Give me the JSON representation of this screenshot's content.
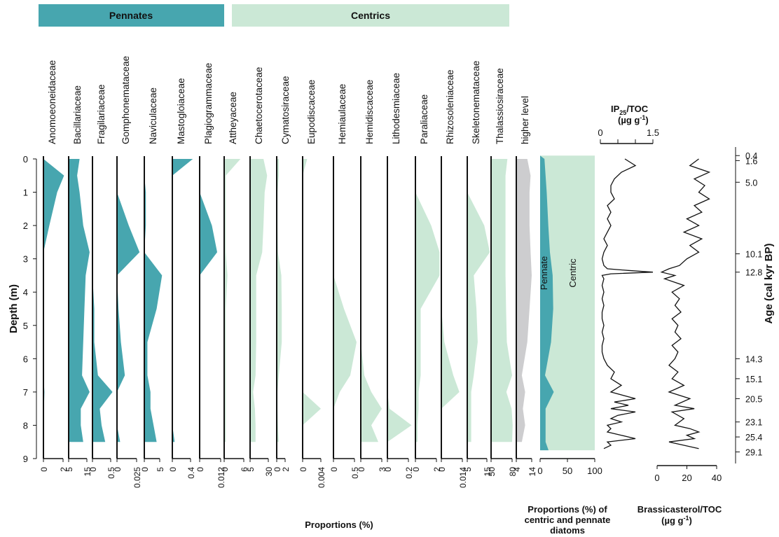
{
  "colors": {
    "pennate": "#47A6AF",
    "centric": "#CBE8D6",
    "higher": "#CDCDCF",
    "axis": "#111111"
  },
  "chart_data": {
    "type": "area",
    "group_labels": {
      "pennates": "Pennates",
      "centrics": "Centrics"
    },
    "depth_axis": {
      "label": "Depth (m)",
      "range": [
        0,
        9
      ],
      "ticks": [
        0,
        1,
        2,
        3,
        4,
        5,
        6,
        7,
        8,
        9
      ]
    },
    "depths": [
      0,
      0.5,
      1,
      2,
      2.8,
      3.5,
      4.5,
      5.5,
      6.5,
      7,
      7.5,
      8,
      8.5
    ],
    "bottom_label": "Proportions (%)",
    "taxa": [
      {
        "name": "Anomoeoneidaceae",
        "group": "pennate",
        "ticks": [
          "0",
          "2"
        ],
        "max": 2,
        "values": [
          0,
          2.1,
          1.4,
          0.6,
          0,
          0,
          0,
          0,
          0,
          0.1,
          0.05,
          0.05,
          0.05
        ]
      },
      {
        "name": "Bacillariaceae",
        "group": "pennate",
        "ticks": [
          "5",
          "15"
        ],
        "max": 15,
        "values": [
          9,
          7,
          9,
          12,
          18,
          14,
          13,
          12,
          11,
          20,
          10,
          10,
          12
        ]
      },
      {
        "name": "Fragilariaceae",
        "group": "pennate",
        "ticks": [
          "0",
          "0.5"
        ],
        "max": 0.5,
        "values": [
          0,
          0,
          0,
          0,
          0,
          0,
          0.05,
          0.05,
          0.15,
          0.55,
          0.2,
          0.25,
          0.35
        ]
      },
      {
        "name": "Gomphonemataceae",
        "group": "pennate",
        "ticks": [
          "0",
          "0.025"
        ],
        "max": 0.025,
        "values": [
          0,
          0,
          0,
          0.015,
          0.03,
          0,
          0.002,
          0.005,
          0.01,
          0,
          0,
          0,
          0.004
        ]
      },
      {
        "name": "Naviculaceae",
        "group": "pennate",
        "ticks": [
          "0",
          "5"
        ],
        "max": 5,
        "values": [
          0,
          0,
          0.5,
          0.5,
          0,
          6,
          4,
          1,
          1,
          2,
          2,
          3,
          4
        ]
      },
      {
        "name": "Mastogloiaceae",
        "group": "pennate",
        "ticks": [
          "0",
          "0.4"
        ],
        "max": 0.4,
        "values": [
          0.45,
          0,
          0,
          0,
          0,
          0,
          0,
          0,
          0,
          0,
          0,
          0,
          0.05
        ]
      },
      {
        "name": "Plagiogrammaceae",
        "group": "pennate",
        "ticks": [
          "0",
          "0.012"
        ],
        "max": 0.012,
        "values": [
          0,
          0,
          0,
          0.007,
          0.01,
          0,
          0,
          0,
          0,
          0,
          0,
          0,
          0
        ]
      },
      {
        "name": "Attheyaceae",
        "group": "centric",
        "ticks": [
          "0",
          "6"
        ],
        "max": 6,
        "values": [
          5,
          0.5,
          0.5,
          0.5,
          0.5,
          1,
          0.5,
          0.5,
          0.5,
          0.5,
          0.5,
          0.5,
          0.5
        ]
      },
      {
        "name": "Chaetocerotaceae",
        "group": "centric",
        "ticks": [
          "5",
          "30"
        ],
        "max": 30,
        "values": [
          22,
          28,
          24,
          22,
          20,
          10,
          10,
          10,
          9,
          5,
          8,
          9,
          9
        ]
      },
      {
        "name": "Cymatosiraceae",
        "group": "centric",
        "ticks": [
          "0",
          "2"
        ],
        "max": 2,
        "values": [
          0.5,
          0.5,
          0.2,
          0.2,
          0.3,
          1.1,
          1.2,
          1.2,
          0.5,
          0.2,
          0.2,
          0.3,
          0.5
        ]
      },
      {
        "name": "Eupodiscaceae",
        "group": "centric",
        "ticks": [
          "0",
          "0.004"
        ],
        "max": 0.004,
        "values": [
          0.001,
          0,
          0,
          0,
          0,
          0,
          0,
          0,
          0,
          0,
          0.004,
          0,
          0
        ]
      },
      {
        "name": "Hemiaulaceae",
        "group": "centric",
        "ticks": [
          "0",
          "0.5"
        ],
        "max": 0.5,
        "values": [
          0,
          0,
          0,
          0,
          0,
          0,
          0.25,
          0.55,
          0.4,
          0.15,
          0,
          0,
          0
        ]
      },
      {
        "name": "Hemidiscaceae",
        "group": "centric",
        "ticks": [
          "0",
          "3"
        ],
        "max": 3,
        "values": [
          0,
          0,
          0,
          0,
          0,
          0,
          0,
          0,
          0.5,
          1.5,
          3,
          1.5,
          2.5
        ]
      },
      {
        "name": "Lithodesmiaceae",
        "group": "centric",
        "ticks": [
          "0",
          "0.2"
        ],
        "max": 0.2,
        "values": [
          0,
          0,
          0,
          0,
          0,
          0,
          0,
          0,
          0,
          0,
          0.02,
          0.25,
          0
        ]
      },
      {
        "name": "Paraliaceae",
        "group": "centric",
        "ticks": [
          "0",
          "2"
        ],
        "max": 2,
        "values": [
          0,
          0,
          0,
          1.5,
          2.3,
          2.3,
          0.5,
          0.5,
          0.5,
          0.3,
          0.3,
          0.2,
          0.2
        ]
      },
      {
        "name": "Rhizosoleniaceae",
        "group": "centric",
        "ticks": [
          "0",
          "0.014"
        ],
        "max": 0.014,
        "values": [
          0,
          0,
          0,
          0,
          0,
          0,
          0,
          0.002,
          0.008,
          0.012,
          0,
          0,
          0
        ]
      },
      {
        "name": "Skeletonemataceae",
        "group": "centric",
        "ticks": [
          "5",
          "15"
        ],
        "max": 15,
        "values": [
          0,
          0,
          0,
          13,
          18,
          5,
          7,
          8,
          5,
          3,
          3,
          3,
          3
        ]
      },
      {
        "name": "Thalassiosiraceae",
        "group": "centric",
        "ticks": [
          "50",
          "80"
        ],
        "max": 80,
        "values": [
          62,
          55,
          55,
          55,
          55,
          55,
          57,
          60,
          80,
          58,
          78,
          82,
          80
        ]
      },
      {
        "name": "higher level",
        "group": "higher",
        "ticks": [
          "4",
          "14"
        ],
        "max": 14,
        "values": [
          10,
          13,
          12,
          12,
          13,
          14,
          12,
          10,
          5,
          8,
          6,
          8,
          5
        ]
      }
    ],
    "summary": {
      "label_lines": [
        "Proportions (%) of",
        "centric and pennate",
        "diatoms"
      ],
      "ticks": [
        "0",
        "50",
        "100"
      ],
      "pennate_label": "Pennate",
      "centric_label": "Centric",
      "pennate_percent": [
        8,
        10,
        12,
        15,
        18,
        23,
        24,
        20,
        9,
        25,
        10,
        10,
        10
      ]
    },
    "ip25": {
      "label": "IP",
      "label_sub": "25",
      "label_rest": "/TOC",
      "unit": "(µg g",
      "unit_sup": "-1",
      "unit_end": ")",
      "ticks": [
        "0",
        "1.5"
      ],
      "max": 1.5,
      "depths": [
        0,
        0.2,
        0.4,
        0.6,
        0.8,
        1.0,
        1.2,
        1.4,
        1.6,
        1.8,
        2.0,
        2.2,
        2.4,
        2.6,
        2.8,
        3.0,
        3.2,
        3.3,
        3.35,
        3.4,
        3.45,
        3.5,
        3.6,
        3.8,
        4.0,
        4.2,
        4.4,
        4.6,
        4.8,
        5.0,
        5.2,
        5.4,
        5.6,
        5.8,
        6.0,
        6.2,
        6.4,
        6.6,
        6.8,
        7.0,
        7.2,
        7.3,
        7.4,
        7.5,
        7.6,
        7.7,
        7.8,
        7.9,
        8.0,
        8.1,
        8.2,
        8.3,
        8.4,
        8.5,
        8.6,
        8.7
      ],
      "values": [
        0.7,
        1.0,
        0.6,
        0.4,
        0.3,
        0.3,
        0.4,
        0.2,
        0.3,
        0.2,
        0.3,
        0.2,
        0.1,
        0.2,
        0.1,
        0.05,
        0.1,
        0.2,
        0.8,
        1.5,
        0.3,
        0.05,
        0.1,
        0.05,
        0.1,
        0.05,
        0.1,
        0.05,
        0.05,
        0.1,
        0.05,
        0.1,
        0.05,
        0.05,
        0.1,
        0.2,
        0.4,
        0.3,
        0.6,
        0.3,
        1.0,
        0.4,
        0.8,
        0.3,
        1.0,
        0.5,
        0.3,
        0.6,
        0.2,
        0.3,
        0.2,
        0.6,
        1.0,
        0.2,
        0.3,
        0.1
      ]
    },
    "brassicasterol": {
      "label": "Brassicasterol/TOC",
      "unit": "(µg g",
      "unit_sup": "-1",
      "unit_end": ")",
      "ticks": [
        "0",
        "20",
        "40"
      ],
      "max": 40,
      "depths": [
        0,
        0.2,
        0.4,
        0.6,
        0.8,
        1.0,
        1.2,
        1.4,
        1.6,
        1.8,
        2.0,
        2.2,
        2.4,
        2.6,
        2.8,
        3.0,
        3.2,
        3.3,
        3.4,
        3.5,
        3.6,
        3.8,
        4.0,
        4.2,
        4.4,
        4.6,
        4.8,
        5.0,
        5.2,
        5.4,
        5.6,
        5.8,
        6.0,
        6.2,
        6.4,
        6.6,
        6.8,
        7.0,
        7.2,
        7.4,
        7.5,
        7.6,
        7.8,
        8.0,
        8.1,
        8.2,
        8.3,
        8.4,
        8.5,
        8.6,
        8.7
      ],
      "values": [
        28,
        22,
        35,
        25,
        32,
        28,
        35,
        25,
        30,
        20,
        28,
        18,
        30,
        22,
        28,
        20,
        15,
        8,
        3,
        12,
        5,
        18,
        10,
        15,
        12,
        16,
        10,
        14,
        12,
        16,
        10,
        14,
        12,
        8,
        14,
        10,
        18,
        8,
        22,
        12,
        25,
        10,
        18,
        12,
        22,
        28,
        20,
        25,
        8,
        18,
        28
      ]
    },
    "age_axis": {
      "label": "Age (cal kyr BP)",
      "ticks": [
        {
          "age": "0.4",
          "depth": -0.1
        },
        {
          "age": "1.6",
          "depth": 0.05
        },
        {
          "age": "5.0",
          "depth": 0.7
        },
        {
          "age": "10.1",
          "depth": 2.85
        },
        {
          "age": "12.8",
          "depth": 3.4
        },
        {
          "age": "14.3",
          "depth": 6.0
        },
        {
          "age": "15.1",
          "depth": 6.6
        },
        {
          "age": "20.5",
          "depth": 7.2
        },
        {
          "age": "23.1",
          "depth": 7.9
        },
        {
          "age": "25.4",
          "depth": 8.35
        },
        {
          "age": "29.1",
          "depth": 8.8
        }
      ]
    }
  }
}
